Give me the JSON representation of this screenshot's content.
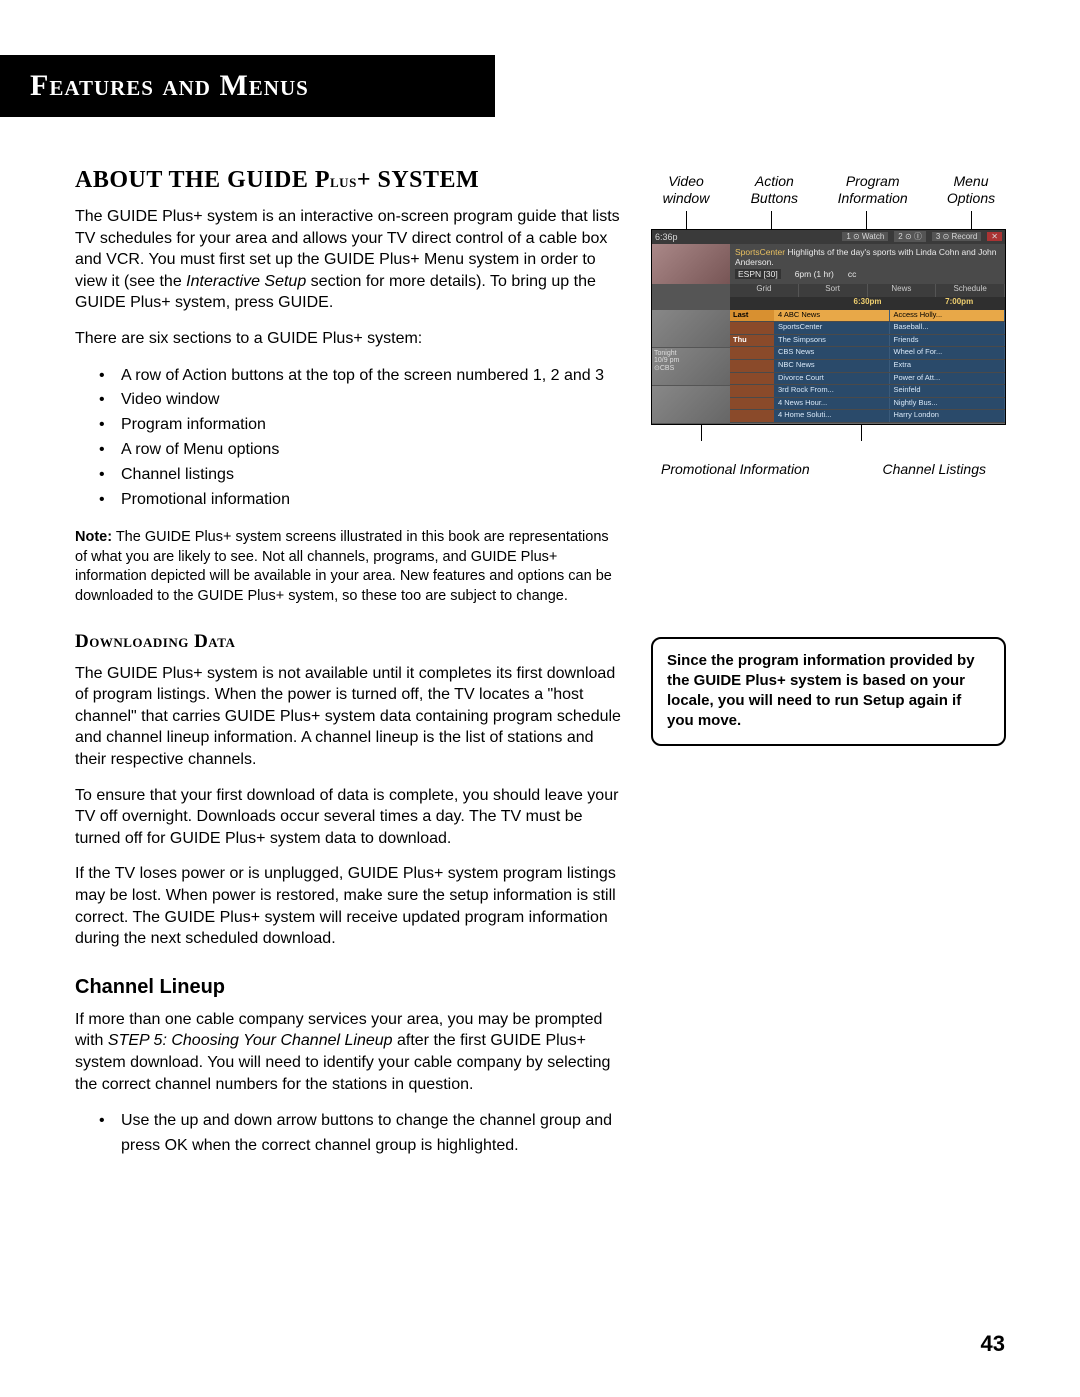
{
  "header": {
    "title": "Features and Menus"
  },
  "section1": {
    "heading_parts": [
      "ABOUT THE GUIDE P",
      "lus",
      "+ SYSTEM"
    ],
    "para1_pre": "The GUIDE Plus+ system is an interactive on-screen program guide that lists TV schedules for your area and allows your TV direct control of a cable box and VCR. You must first set up the GUIDE Plus+ Menu system in order to view it (see the ",
    "para1_italic": "Interactive Setup",
    "para1_post": " section for more details). To bring up the GUIDE Plus+ system, press GUIDE.",
    "para2": "There are six sections to a GUIDE Plus+ system:",
    "bullets": [
      "A row of Action buttons at the top of the screen numbered  1, 2 and 3",
      "Video window",
      "Program information",
      "A row of Menu options",
      "Channel listings",
      "Promotional information"
    ],
    "note_label": "Note:",
    "note_body": "  The GUIDE Plus+ system screens illustrated in this book are representations of what you are likely to see. Not all channels, programs, and GUIDE Plus+ information depicted will be available in your area. New features and options can be downloaded to the GUIDE Plus+ system, so these too are subject to change."
  },
  "downloading": {
    "heading": "Downloading Data",
    "p1": "The GUIDE Plus+ system is not available until it completes its first download of program listings. When the power is turned off, the TV locates a \"host channel\" that carries GUIDE Plus+ system data containing program schedule and channel lineup information. A channel lineup is the list of stations and their respective channels.",
    "p2": "To ensure that your first download of data is complete, you should leave your TV off overnight. Downloads occur several times a day. The TV must be turned off for GUIDE Plus+ system data to download.",
    "p3": "If the TV loses power or is unplugged, GUIDE Plus+ system program listings may be lost. When power is restored, make sure the setup information is still correct. The GUIDE Plus+ system will receive updated program information during the next scheduled download."
  },
  "channel_lineup": {
    "heading": "Channel Lineup",
    "p1_pre": "If more than one cable company services your area, you may be prompted with ",
    "p1_italic": "STEP 5: Choosing Your Channel Lineup",
    "p1_post": " after the first GUIDE Plus+ system download. You will need to identify your cable company by selecting the correct channel numbers for the stations in question.",
    "bullets": [
      "Use the up and down arrow buttons to change the channel group and press OK when the correct channel group is highlighted."
    ]
  },
  "diagram": {
    "labels_top": {
      "video_window": "Video window",
      "action_buttons": "Action Buttons",
      "program_info": "Program Information",
      "menu_options": "Menu Options"
    },
    "labels_bottom": {
      "promotional": "Promotional Information",
      "channel": "Channel Listings"
    },
    "guide": {
      "time_tl": "6:36p",
      "action_chips": [
        "1 ⊙ Watch",
        "2 ⊙ Ⓘ",
        "3 ⊙ Record"
      ],
      "close_chip": "✕",
      "info_title": "SportsCenter ",
      "info_rest": "Highlights of the day's sports with Linda Cohn and John Anderson.",
      "info_row2_ch": "ESPN [30]",
      "info_row2_time": "6pm (1 hr)",
      "info_row2_cc": "cc",
      "menu_items": [
        "Grid",
        "Sort",
        "News",
        "Schedule"
      ],
      "time_cols": [
        "",
        "6:30pm",
        "7:00pm"
      ],
      "promo_slots": [
        "",
        "Tonight\n10/9 pm\n⊙CBS",
        ""
      ],
      "listings": [
        {
          "ch": "Last",
          "a": "4 ABC News",
          "b": "Access Holly...",
          "sel": true
        },
        {
          "ch": "",
          "a": "SportsCenter",
          "b": "Baseball..."
        },
        {
          "ch": "Thu",
          "a": "The Simpsons",
          "b": "Friends"
        },
        {
          "ch": "",
          "a": "CBS News",
          "b": "Wheel of For..."
        },
        {
          "ch": "",
          "a": "NBC News",
          "b": "Extra"
        },
        {
          "ch": "",
          "a": "Divorce Court",
          "b": "Power of Att..."
        },
        {
          "ch": "",
          "a": "3rd Rock From...",
          "b": "Seinfeld"
        },
        {
          "ch": "",
          "a": "4 News Hour...",
          "b": "Nightly Bus..."
        },
        {
          "ch": "",
          "a": "4 Home Soluti...",
          "b": "Harry London"
        }
      ]
    }
  },
  "callout": {
    "text": "Since the program information provided by the GUIDE Plus+ system is based on your locale, you will need to run Setup again if you move."
  },
  "page_number": "43"
}
